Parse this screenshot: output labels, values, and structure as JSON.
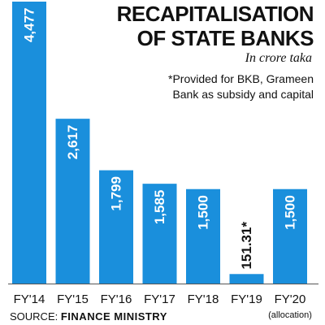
{
  "chart_data": {
    "type": "bar",
    "title": "RECAPITALISATION OF STATE BANKS",
    "title_lines": [
      "RECAPITALISATION",
      "OF STATE BANKS"
    ],
    "subtitle": "In crore taka",
    "note_lines": [
      "*Provided for BKB, Grameen",
      "Bank as subsidy and capital"
    ],
    "categories": [
      "FY'14",
      "FY'15",
      "FY'16",
      "FY'17",
      "FY'18",
      "FY'19",
      "FY'20"
    ],
    "category_sublabels": [
      "",
      "",
      "",
      "",
      "",
      "",
      "(allocation)"
    ],
    "values": [
      4477,
      2617,
      1799,
      1585,
      1500,
      151.31,
      1500
    ],
    "value_labels": [
      "4,477",
      "2,617",
      "1,799",
      "1,585",
      "1,500",
      "151.31*",
      "1,500"
    ],
    "ylim": [
      0,
      4477
    ],
    "bar_color": "#1a8fdc",
    "value_label_color_inside": "#ffffff",
    "value_label_color_outside": "#111111",
    "grid": false
  },
  "source": {
    "prefix": "SOURCE:",
    "name": "FINANCE MINISTRY"
  }
}
